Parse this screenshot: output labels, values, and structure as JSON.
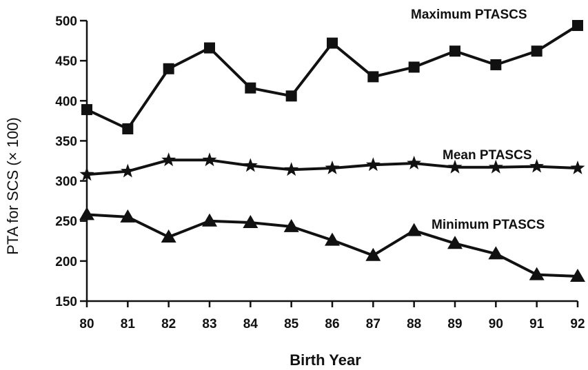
{
  "chart_data": {
    "type": "line",
    "xlabel": "Birth Year",
    "ylabel": "PTA for SCS (× 100)",
    "categories": [
      "80",
      "81",
      "82",
      "83",
      "84",
      "85",
      "86",
      "87",
      "88",
      "89",
      "90",
      "91",
      "92"
    ],
    "ylim": [
      150,
      500
    ],
    "yticks": [
      150,
      200,
      250,
      300,
      350,
      400,
      450,
      500
    ],
    "grid": false,
    "series": [
      {
        "name": "Maximum PTASCS",
        "marker": "square",
        "values": [
          389,
          365,
          440,
          466,
          416,
          406,
          472,
          430,
          442,
          462,
          445,
          462,
          494
        ]
      },
      {
        "name": "Mean PTASCS",
        "marker": "star",
        "values": [
          308,
          312,
          326,
          326,
          319,
          314,
          316,
          320,
          322,
          317,
          317,
          318,
          316
        ]
      },
      {
        "name": "Minimum PTASCS",
        "marker": "triangle",
        "values": [
          258,
          255,
          230,
          250,
          248,
          243,
          226,
          207,
          238,
          222,
          209,
          183,
          181
        ]
      }
    ],
    "colors": {
      "line": "#111111",
      "background": "#ffffff"
    }
  }
}
